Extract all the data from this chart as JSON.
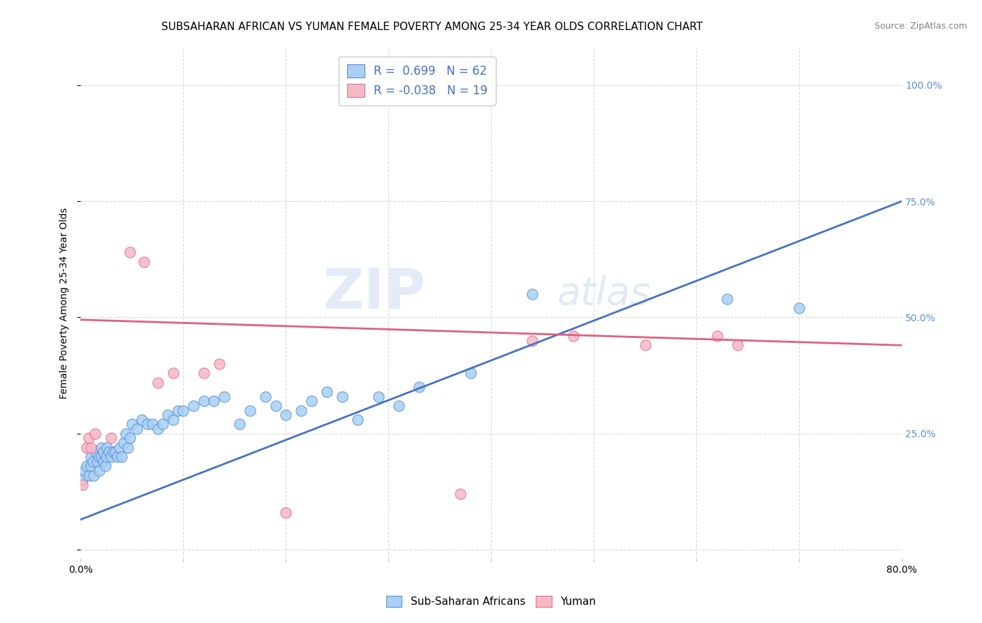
{
  "title": "SUBSAHARAN AFRICAN VS YUMAN FEMALE POVERTY AMONG 25-34 YEAR OLDS CORRELATION CHART",
  "source": "Source: ZipAtlas.com",
  "ylabel": "Female Poverty Among 25-34 Year Olds",
  "xlim": [
    0.0,
    0.8
  ],
  "ylim": [
    -0.02,
    1.08
  ],
  "blue_label": "Sub-Saharan Africans",
  "pink_label": "Yuman",
  "blue_R": "0.699",
  "blue_N": "62",
  "pink_R": "-0.038",
  "pink_N": "19",
  "blue_color": "#A8D0F5",
  "pink_color": "#F5B8C8",
  "blue_edge_color": "#5B8FD4",
  "pink_edge_color": "#E07090",
  "blue_line_color": "#4472C4",
  "pink_line_color": "#E06080",
  "watermark_ZIP": "ZIP",
  "watermark_atlas": "atlas",
  "grid_color": "#D8D8D8",
  "bg_color": "#FFFFFF",
  "title_fontsize": 11,
  "axis_fontsize": 10,
  "right_tick_color": "#5B8FD4",
  "blue_scatter_x": [
    0.002,
    0.004,
    0.006,
    0.008,
    0.01,
    0.01,
    0.012,
    0.013,
    0.015,
    0.016,
    0.018,
    0.018,
    0.02,
    0.02,
    0.022,
    0.022,
    0.024,
    0.025,
    0.026,
    0.028,
    0.03,
    0.032,
    0.034,
    0.036,
    0.038,
    0.04,
    0.042,
    0.044,
    0.046,
    0.048,
    0.05,
    0.055,
    0.06,
    0.065,
    0.07,
    0.075,
    0.08,
    0.085,
    0.09,
    0.095,
    0.1,
    0.11,
    0.12,
    0.13,
    0.14,
    0.155,
    0.165,
    0.18,
    0.19,
    0.2,
    0.215,
    0.225,
    0.24,
    0.255,
    0.27,
    0.29,
    0.31,
    0.33,
    0.38,
    0.44,
    0.63,
    0.7
  ],
  "blue_scatter_y": [
    0.15,
    0.17,
    0.18,
    0.16,
    0.18,
    0.2,
    0.19,
    0.16,
    0.21,
    0.19,
    0.2,
    0.17,
    0.2,
    0.22,
    0.19,
    0.21,
    0.18,
    0.2,
    0.22,
    0.21,
    0.2,
    0.21,
    0.21,
    0.2,
    0.22,
    0.2,
    0.23,
    0.25,
    0.22,
    0.24,
    0.27,
    0.26,
    0.28,
    0.27,
    0.27,
    0.26,
    0.27,
    0.29,
    0.28,
    0.3,
    0.3,
    0.31,
    0.32,
    0.32,
    0.33,
    0.27,
    0.3,
    0.33,
    0.31,
    0.29,
    0.3,
    0.32,
    0.34,
    0.33,
    0.28,
    0.33,
    0.31,
    0.35,
    0.38,
    0.55,
    0.54,
    0.52
  ],
  "pink_scatter_x": [
    0.002,
    0.006,
    0.008,
    0.01,
    0.014,
    0.03,
    0.048,
    0.062,
    0.075,
    0.09,
    0.12,
    0.135,
    0.2,
    0.37,
    0.44,
    0.48,
    0.55,
    0.62,
    0.64
  ],
  "pink_scatter_y": [
    0.14,
    0.22,
    0.24,
    0.22,
    0.25,
    0.24,
    0.64,
    0.62,
    0.36,
    0.38,
    0.38,
    0.4,
    0.08,
    0.12,
    0.45,
    0.46,
    0.44,
    0.46,
    0.44
  ],
  "blue_line_x": [
    0.0,
    0.8
  ],
  "blue_line_y": [
    0.065,
    0.75
  ],
  "pink_line_x": [
    0.0,
    0.8
  ],
  "pink_line_y": [
    0.495,
    0.44
  ],
  "ytick_positions": [
    0.0,
    0.25,
    0.5,
    0.75,
    1.0
  ],
  "ytick_labels": [
    "",
    "25.0%",
    "50.0%",
    "75.0%",
    "100.0%"
  ],
  "xtick_positions": [
    0.0,
    0.1,
    0.2,
    0.3,
    0.4,
    0.5,
    0.6,
    0.7,
    0.8
  ],
  "xtick_labels": [
    "0.0%",
    "",
    "",
    "",
    "",
    "",
    "",
    "",
    "80.0%"
  ]
}
